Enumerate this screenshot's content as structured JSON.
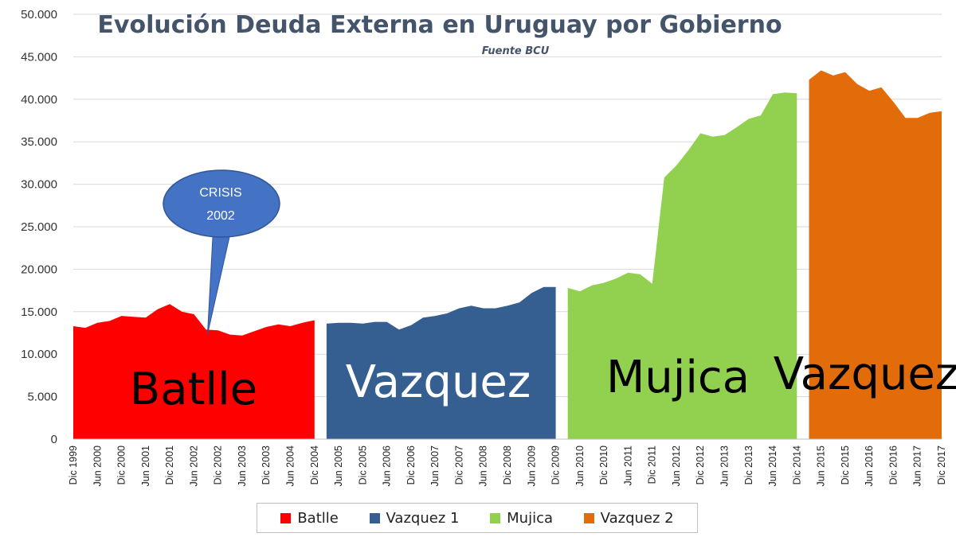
{
  "chart_data": {
    "type": "area",
    "title": "Evolución Deuda Externa en Uruguay por Gobierno",
    "subtitle": "Fuente BCU",
    "xlabel": "",
    "ylabel": "",
    "ylim": [
      0,
      50000
    ],
    "yticks": [
      "0",
      "5.000",
      "10.000",
      "15.000",
      "20.000",
      "25.000",
      "30.000",
      "35.000",
      "40.000",
      "45.000",
      "50.000"
    ],
    "ytick_values": [
      0,
      5000,
      10000,
      15000,
      20000,
      25000,
      30000,
      35000,
      40000,
      45000,
      50000
    ],
    "xticks": [
      "Dic 1999",
      "Jun 2000",
      "Dic 2000",
      "Jun 2001",
      "Dic 2001",
      "Jun 2002",
      "Dic 2002",
      "Jun 2003",
      "Dic 2003",
      "Jun 2004",
      "Dic 2004",
      "Jun 2005",
      "Dic 2005",
      "Jun 2006",
      "Dic 2006",
      "Jun 2007",
      "Dic 2007",
      "Jun 2008",
      "Dic 2008",
      "Jun 2009",
      "Dic 2009",
      "Jun 2010",
      "Dic 2010",
      "Jun 2011",
      "Dic 2011",
      "Jun 2012",
      "Dic 2012",
      "Jun 2013",
      "Dic 2013",
      "Jun 2014",
      "Dic 2014",
      "Jun 2015",
      "Dic 2015",
      "Jun 2016",
      "Dic 2016",
      "Jun 2017",
      "Dic 2017"
    ],
    "grid": true,
    "legend_position": "bottom",
    "series": [
      {
        "name": "Batlle",
        "label": "Batlle",
        "color": "#ff0000",
        "label_color": "#000000",
        "x": [
          "Dic 1999",
          "Mar 2000",
          "Jun 2000",
          "Sep 2000",
          "Dic 2000",
          "Mar 2001",
          "Jun 2001",
          "Sep 2001",
          "Dic 2001",
          "Mar 2002",
          "Jun 2002",
          "Sep 2002",
          "Dic 2002",
          "Mar 2003",
          "Jun 2003",
          "Sep 2003",
          "Dic 2003",
          "Mar 2004",
          "Jun 2004",
          "Sep 2004",
          "Dic 2004"
        ],
        "values": [
          13300,
          13100,
          13700,
          13900,
          14500,
          14400,
          14300,
          15300,
          15900,
          15000,
          14700,
          12900,
          12800,
          12300,
          12200,
          12700,
          13200,
          13500,
          13300,
          13700,
          14000
        ]
      },
      {
        "name": "Vazquez 1",
        "label": "Vazquez",
        "color": "#365f91",
        "label_color": "#ffffff",
        "x": [
          "Mar 2005",
          "Jun 2005",
          "Sep 2005",
          "Dic 2005",
          "Mar 2006",
          "Jun 2006",
          "Sep 2006",
          "Dic 2006",
          "Mar 2007",
          "Jun 2007",
          "Sep 2007",
          "Dic 2007",
          "Mar 2008",
          "Jun 2008",
          "Sep 2008",
          "Dic 2008",
          "Mar 2009",
          "Jun 2009",
          "Sep 2009",
          "Dic 2009"
        ],
        "values": [
          13600,
          13700,
          13700,
          13600,
          13800,
          13800,
          12900,
          13400,
          14300,
          14500,
          14800,
          15400,
          15700,
          15400,
          15400,
          15700,
          16100,
          17200,
          17900,
          17900
        ]
      },
      {
        "name": "Mujica",
        "label": "Mujica",
        "color": "#92d050",
        "label_color": "#000000",
        "x": [
          "Mar 2010",
          "Jun 2010",
          "Sep 2010",
          "Dic 2010",
          "Mar 2011",
          "Jun 2011",
          "Sep 2011",
          "Dic 2011",
          "Mar 2012",
          "Jun 2012",
          "Sep 2012",
          "Dic 2012",
          "Mar 2013",
          "Jun 2013",
          "Sep 2013",
          "Dic 2013",
          "Mar 2014",
          "Jun 2014",
          "Sep 2014",
          "Dic 2014"
        ],
        "values": [
          17800,
          17400,
          18100,
          18400,
          18900,
          19600,
          19400,
          18300,
          30800,
          32200,
          34000,
          36000,
          35600,
          35800,
          36700,
          37700,
          38100,
          40600,
          40800,
          40700
        ]
      },
      {
        "name": "Vazquez 2",
        "label": "Vazquez",
        "color": "#e36c0a",
        "label_color": "#000000",
        "x": [
          "Mar 2015",
          "Jun 2015",
          "Sep 2015",
          "Dic 2015",
          "Mar 2016",
          "Jun 2016",
          "Sep 2016",
          "Dic 2016",
          "Mar 2017",
          "Jun 2017",
          "Sep 2017",
          "Dic 2017"
        ],
        "values": [
          42300,
          43400,
          42800,
          43200,
          41800,
          41000,
          41400,
          39700,
          37800,
          37800,
          38400,
          38600
        ]
      }
    ],
    "annotations": [
      {
        "text_line1": "CRISIS",
        "text_line2": "2002",
        "points_to": "Sep 2002"
      }
    ]
  }
}
